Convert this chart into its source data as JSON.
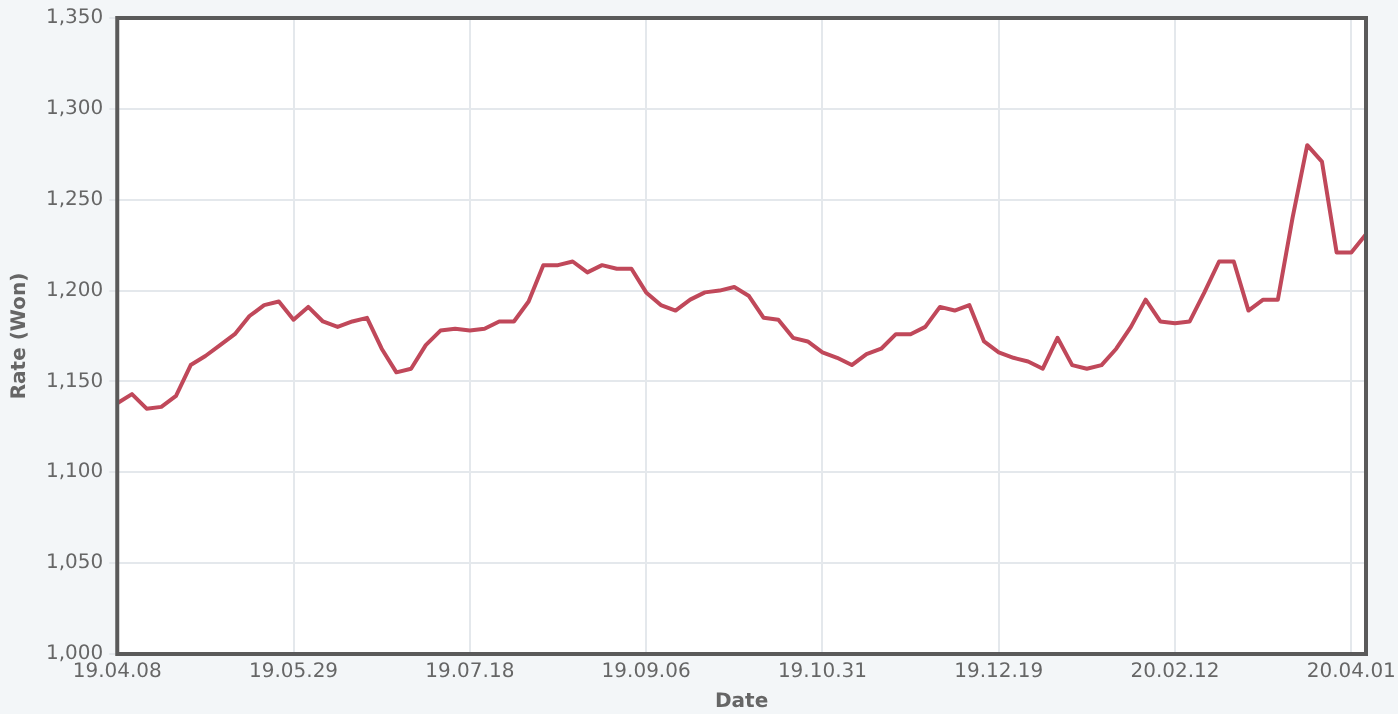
{
  "chart_data": {
    "type": "line",
    "xlabel": "Date",
    "ylabel": "Rate (Won)",
    "categories": [
      "19.04.08",
      null,
      null,
      null,
      null,
      null,
      null,
      null,
      null,
      null,
      null,
      null,
      "19.05.29",
      null,
      null,
      null,
      null,
      null,
      null,
      null,
      null,
      null,
      null,
      null,
      "19.07.18",
      null,
      null,
      null,
      null,
      null,
      null,
      null,
      null,
      null,
      null,
      null,
      "19.09.06",
      null,
      null,
      null,
      null,
      null,
      null,
      null,
      null,
      null,
      null,
      null,
      "19.10.31",
      null,
      null,
      null,
      null,
      null,
      null,
      null,
      null,
      null,
      null,
      null,
      "19.12.19",
      null,
      null,
      null,
      null,
      null,
      null,
      null,
      null,
      null,
      null,
      null,
      "20.02.12",
      null,
      null,
      null,
      null,
      null,
      null,
      null,
      null,
      null,
      null,
      null,
      "20.04.01",
      null
    ],
    "series": [
      {
        "color": "#c0485a",
        "values": [
          1138,
          1143,
          1135,
          1136,
          1142,
          1159,
          1164,
          1170,
          1176,
          1186,
          1192,
          1194,
          1184,
          1191,
          1183,
          1180,
          1183,
          1185,
          1168,
          1155,
          1157,
          1170,
          1178,
          1179,
          1178,
          1179,
          1183,
          1183,
          1194,
          1214,
          1214,
          1216,
          1210,
          1214,
          1212,
          1212,
          1199,
          1192,
          1189,
          1195,
          1199,
          1200,
          1202,
          1197,
          1185,
          1184,
          1174,
          1172,
          1166,
          1163,
          1159,
          1165,
          1168,
          1176,
          1176,
          1180,
          1191,
          1189,
          1192,
          1172,
          1166,
          1163,
          1161,
          1157,
          1174,
          1159,
          1157,
          1159,
          1168,
          1180,
          1195,
          1183,
          1182,
          1183,
          1199,
          1216,
          1216,
          1189,
          1195,
          1195,
          1240,
          1280,
          1271,
          1221,
          1221,
          1231
        ]
      }
    ],
    "ylim": [
      1000,
      1350
    ],
    "yticks": [
      {
        "value": 1000,
        "label": "1,000"
      },
      {
        "value": 1050,
        "label": "1,050"
      },
      {
        "value": 1100,
        "label": "1,100"
      },
      {
        "value": 1150,
        "label": "1,150"
      },
      {
        "value": 1200,
        "label": "1,200"
      },
      {
        "value": 1250,
        "label": "1,250"
      },
      {
        "value": 1300,
        "label": "1,300"
      },
      {
        "value": 1350,
        "label": "1,350"
      }
    ],
    "grid": true,
    "legend": false,
    "marker": "none",
    "line_style": "solid"
  }
}
